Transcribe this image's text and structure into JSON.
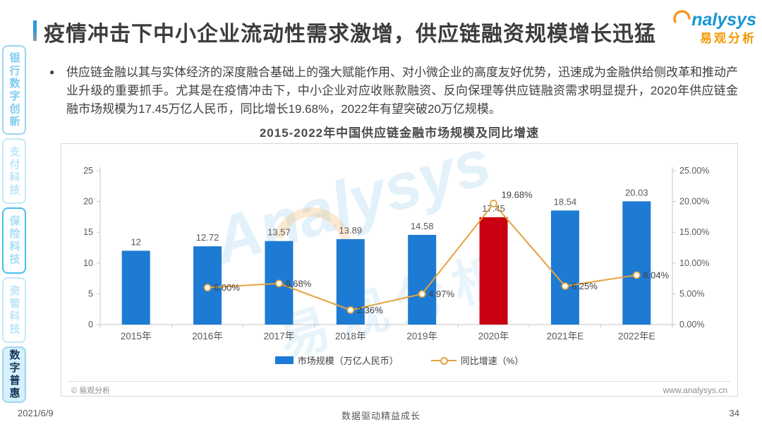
{
  "header": {
    "title": "疫情冲击下中小企业流动性需求激增，供应链融资规模增长迅猛",
    "logo": {
      "brand": "nalysys",
      "brand_cn": "易观分析"
    }
  },
  "sidebar": {
    "items": [
      {
        "label": "银行数字创新",
        "active": false
      },
      {
        "label": "支付科技",
        "active": false
      },
      {
        "label": "保险科技",
        "active": false
      },
      {
        "label": "资管科技",
        "active": false
      },
      {
        "label": "数字普惠",
        "active": true
      }
    ]
  },
  "intro": {
    "bullet": "●",
    "text": "供应链金融以其与实体经济的深度融合基础上的强大赋能作用、对小微企业的高度友好优势，迅速成为金融供给侧改革和推动产业升级的重要抓手。尤其是在疫情冲击下，中小企业对应收账款融资、反向保理等供应链融资需求明显提升，2020年供应链金融市场规模为17.45万亿人民币，同比增长19.68%，2022年有望突破20万亿规模。"
  },
  "chart_data": {
    "type": "combo",
    "title": "2015-2022年中国供应链金融市场规模及同比增速",
    "categories": [
      "2015年",
      "2016年",
      "2017年",
      "2018年",
      "2019年",
      "2020年",
      "2021年E",
      "2022年E"
    ],
    "series": [
      {
        "name": "市场规模（万亿人民币）",
        "type": "bar",
        "values": [
          12,
          12.72,
          13.57,
          13.89,
          14.58,
          17.45,
          18.54,
          20.03
        ],
        "labels": [
          "12",
          "12.72",
          "13.57",
          "13.89",
          "14.58",
          "17.45",
          "18.54",
          "20.03"
        ],
        "color": "#1E7BD3",
        "highlight_index": 5,
        "highlight_color": "#C9000F"
      },
      {
        "name": "同比增速（%）",
        "type": "line",
        "values": [
          null,
          6.0,
          6.68,
          2.36,
          4.97,
          19.68,
          6.25,
          8.04
        ],
        "labels": [
          null,
          "6.00%",
          "6.68%",
          "2.36%",
          "4.97%",
          "19.68%",
          "6.25%",
          "8.04%"
        ],
        "color": "#E5A23C",
        "marker_fill": "#FFFDF2"
      }
    ],
    "left_axis": {
      "min": 0,
      "max": 25,
      "ticks": [
        "0",
        "5",
        "10",
        "15",
        "20",
        "25"
      ]
    },
    "right_axis": {
      "min": 0,
      "max": 25,
      "ticks": [
        "0.00%",
        "5.00%",
        "10.00%",
        "15.00%",
        "20.00%",
        "25.00%"
      ]
    },
    "legend_position": "bottom",
    "grid": false,
    "axis_color": "#C6C6C6",
    "label_color": "#595959",
    "point_label_color": "#404040"
  },
  "card": {
    "copyright": "© 易观分析",
    "website": "www.analysys.cn"
  },
  "watermark": {
    "brand": "Analysys",
    "brand_cn": "易观分析"
  },
  "footer": {
    "date": "2021/6/9",
    "slogan": "数据驱动精益成长",
    "page": "34"
  }
}
